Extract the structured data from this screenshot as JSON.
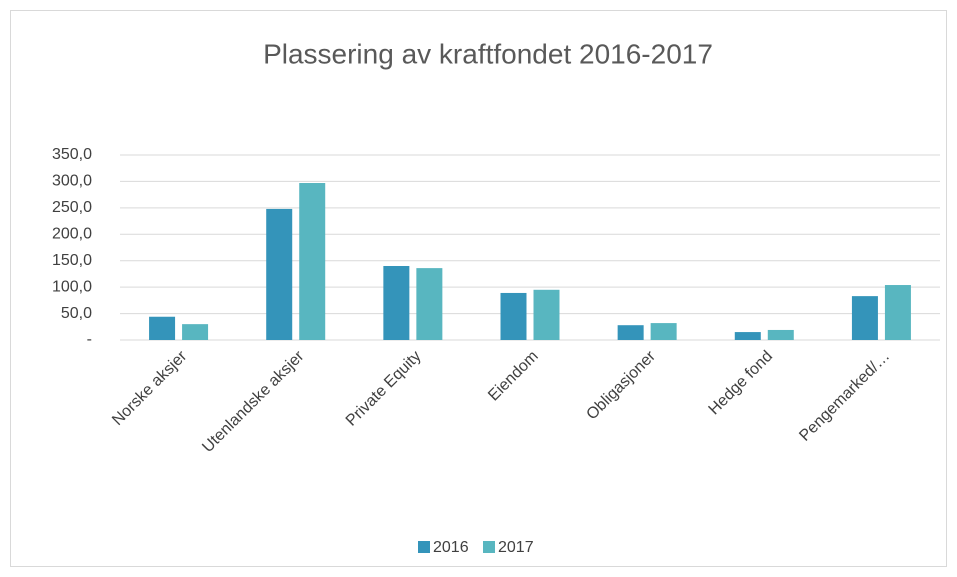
{
  "chart_data": {
    "type": "bar",
    "title": "Plassering av kraftfondet 2016-2017",
    "categories": [
      "Norske aksjer",
      "Utenlandske aksjer",
      "Private Equity",
      "Eiendom",
      "Obligasjoner",
      "Hedge fond",
      "Pengemarked/…"
    ],
    "series": [
      {
        "name": "2016",
        "color": "#3494ba",
        "values": [
          44,
          248,
          140,
          89,
          28,
          15,
          83
        ]
      },
      {
        "name": "2017",
        "color": "#58b6c0",
        "values": [
          30,
          297,
          136,
          95,
          32,
          19,
          104
        ]
      }
    ],
    "ylim": [
      0,
      350
    ],
    "yticks": [
      {
        "value": 0,
        "label": "-"
      },
      {
        "value": 50,
        "label": "50,0"
      },
      {
        "value": 100,
        "label": "100,0"
      },
      {
        "value": 150,
        "label": "150,0"
      },
      {
        "value": 200,
        "label": "200,0"
      },
      {
        "value": 250,
        "label": "250,0"
      },
      {
        "value": 300,
        "label": "300,0"
      },
      {
        "value": 350,
        "label": "350,0"
      }
    ],
    "grid": true,
    "legend": "bottom"
  }
}
